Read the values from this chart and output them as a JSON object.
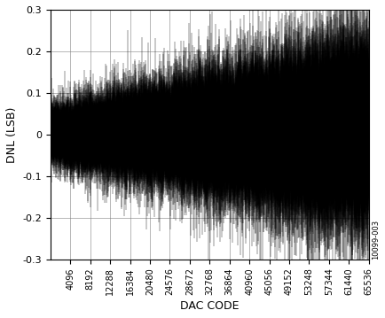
{
  "title": "",
  "xlabel": "DAC CODE",
  "ylabel": "DNL (LSB)",
  "xlim": [
    0,
    65536
  ],
  "ylim": [
    -0.3,
    0.3
  ],
  "xticks": [
    4096,
    8192,
    12288,
    16384,
    20480,
    24576,
    28672,
    32768,
    36864,
    40960,
    45056,
    49152,
    53248,
    57344,
    61440,
    65536
  ],
  "yticks": [
    -0.3,
    -0.2,
    -0.1,
    0,
    0.1,
    0.2,
    0.3
  ],
  "ytick_labels": [
    "-0.3",
    "-0.2",
    "-0.1",
    "0",
    "0.1",
    "0.2",
    "0.3"
  ],
  "grid": true,
  "line_color": "#000000",
  "background_color": "#ffffff",
  "watermark": "10099-003",
  "num_points": 65536,
  "seed": 42,
  "figsize": [
    4.35,
    3.59
  ],
  "dpi": 100
}
